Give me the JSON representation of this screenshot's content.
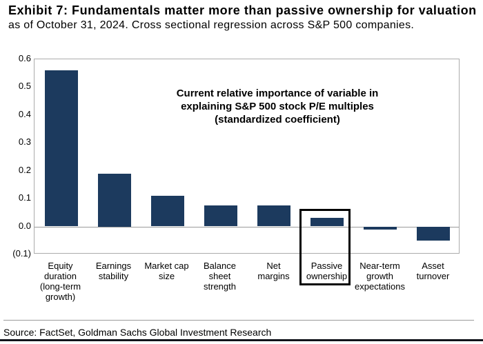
{
  "header": {
    "title": "Exhibit 7: Fundamentals matter more than passive ownership for valuation",
    "subtitle": "as of October 31, 2024. Cross sectional regression across S&P 500 companies."
  },
  "chart_data": {
    "type": "bar",
    "annotation": "Current relative importance of variable in\nexplaining S&P 500 stock P/E multiples\n(standardized coefficient)",
    "categories": [
      "Equity\nduration\n(long-term\ngrowth)",
      "Earnings\nstability",
      "Market cap\nsize",
      "Balance\nsheet\nstrength",
      "Net\nmargins",
      "Passive\nownership",
      "Near-term\ngrowth\nexpectations",
      "Asset\nturnover"
    ],
    "values": [
      0.56,
      0.19,
      0.11,
      0.075,
      0.075,
      0.03,
      -0.01,
      -0.05
    ],
    "ylim": [
      -0.1,
      0.6
    ],
    "yticks": [
      {
        "label": "0.6",
        "value": 0.6
      },
      {
        "label": "0.5",
        "value": 0.5
      },
      {
        "label": "0.4",
        "value": 0.4
      },
      {
        "label": "0.3",
        "value": 0.3
      },
      {
        "label": "0.2",
        "value": 0.2
      },
      {
        "label": "0.1",
        "value": 0.1
      },
      {
        "label": "0.0",
        "value": 0.0
      },
      {
        "label": "(0.1)",
        "value": -0.1
      }
    ],
    "highlight_category": "Passive ownership",
    "highlight_index": 5,
    "bar_color": "#1c3a5e",
    "grid": false,
    "legend": false
  },
  "footer": {
    "source": "Source: FactSet, Goldman Sachs Global Investment Research"
  }
}
